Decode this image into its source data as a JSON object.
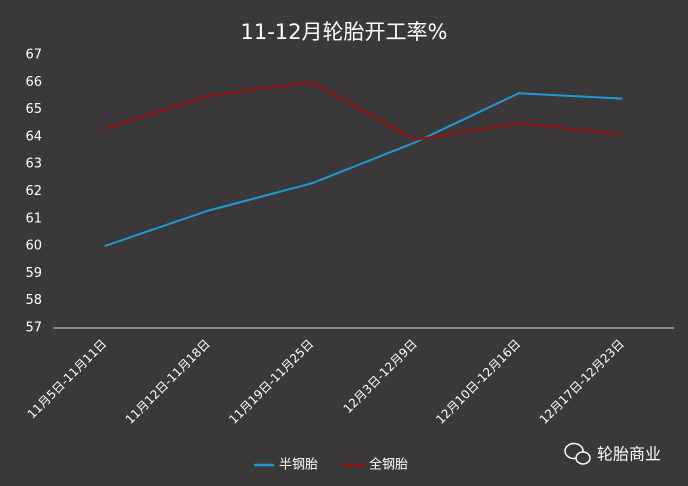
{
  "chart_data": {
    "type": "line",
    "title": "11-12月轮胎开工率%",
    "categories": [
      "11月5日-11月11日",
      "11月12日-11月18日",
      "11月19日-11月25日",
      "12月3日-12月9日",
      "12月10日-12月16日",
      "12月17日-12月23日"
    ],
    "series": [
      {
        "name": "半钢胎",
        "color": "#1e9ad6",
        "values": [
          60.0,
          61.3,
          62.3,
          63.8,
          65.6,
          65.4
        ]
      },
      {
        "name": "全钢胎",
        "color": "#9a0e0e",
        "values": [
          64.3,
          65.5,
          66.0,
          63.9,
          64.5,
          64.1
        ]
      }
    ],
    "ylim": [
      57,
      67
    ],
    "yticks": [
      57,
      58,
      59,
      60,
      61,
      62,
      63,
      64,
      65,
      66,
      67
    ],
    "grid": false,
    "legend": "bottom",
    "watermark": "轮胎商业"
  }
}
